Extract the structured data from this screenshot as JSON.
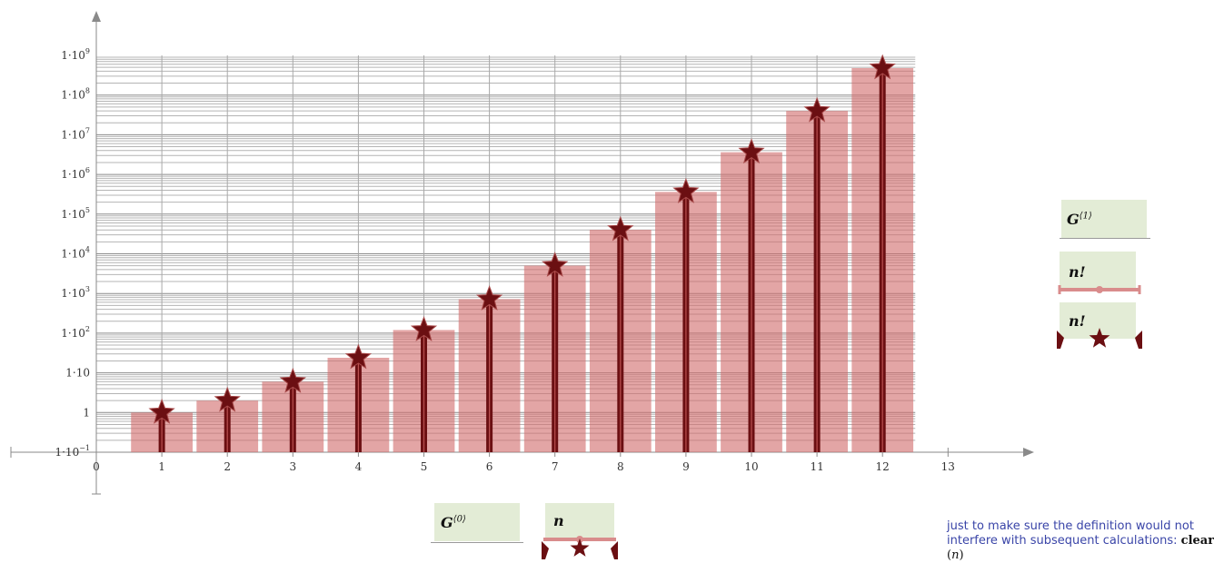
{
  "chart_data": {
    "type": "bar",
    "y_scale": "log",
    "x": [
      1,
      2,
      3,
      4,
      5,
      6,
      7,
      8,
      9,
      10,
      11,
      12
    ],
    "values": [
      1,
      2,
      6,
      24,
      120,
      720,
      5040,
      40320,
      362880,
      3628800,
      39916800,
      479001600
    ],
    "series": [
      {
        "name": "n!",
        "style": "bars",
        "color": "#d98c8c"
      },
      {
        "name": "n!",
        "style": "stem-star",
        "color": "#6b0f12"
      }
    ],
    "x_ticks": [
      "0",
      "1",
      "2",
      "3",
      "4",
      "5",
      "6",
      "7",
      "8",
      "9",
      "10",
      "11",
      "12",
      "13"
    ],
    "y_ticks": [
      {
        "base": "1·10",
        "exp": "−1",
        "value": 0.1
      },
      {
        "base": "1",
        "exp": "",
        "value": 1
      },
      {
        "base": "1·10",
        "exp": "",
        "value": 10
      },
      {
        "base": "1·10",
        "exp": "2",
        "value": 100
      },
      {
        "base": "1·10",
        "exp": "3",
        "value": 1000
      },
      {
        "base": "1·10",
        "exp": "4",
        "value": 10000
      },
      {
        "base": "1·10",
        "exp": "5",
        "value": 100000
      },
      {
        "base": "1·10",
        "exp": "6",
        "value": 1000000
      },
      {
        "base": "1·10",
        "exp": "7",
        "value": 10000000
      },
      {
        "base": "1·10",
        "exp": "8",
        "value": 100000000
      },
      {
        "base": "1·10",
        "exp": "9",
        "value": 1000000000
      }
    ],
    "xlim": [
      0,
      13
    ],
    "ylim": [
      0.1,
      1000000000
    ],
    "grid": true
  },
  "x_axis_label": {
    "base": "G",
    "sup": "⟨0⟩"
  },
  "y_axis_label": {
    "base": "G",
    "sup": "⟨1⟩"
  },
  "x_trace_label": "n",
  "legend": [
    "n!",
    "n!"
  ],
  "note": {
    "text": "just to make sure the definition would not interfere with subsequent calculations:",
    "command": "clear",
    "open": "(",
    "arg": "n",
    "close": ")"
  }
}
